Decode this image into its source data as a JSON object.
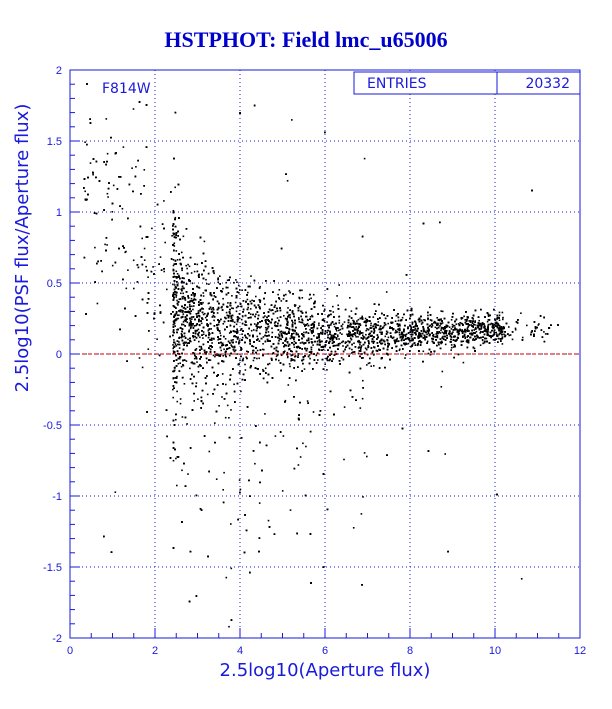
{
  "colors": {
    "axis": "#1a1adb",
    "title": "#0000cc",
    "points": "#000000",
    "zero_line": "#cc0000",
    "grid": "#1a1adb"
  },
  "chart_data": {
    "type": "scatter",
    "title": "HSTPHOT: Field lmc_u65006",
    "xlabel": "2.5log10(Aperture flux)",
    "ylabel": "2.5log10(PSF flux/Aperture flux)",
    "xlim": [
      0,
      12
    ],
    "ylim": [
      -2,
      2
    ],
    "x_ticks": [
      "0",
      "2",
      "4",
      "6",
      "8",
      "10",
      "12"
    ],
    "y_ticks": [
      "-2",
      "-1.5",
      "-1",
      "-0.5",
      "0",
      "0.5",
      "1",
      "1.5",
      "2"
    ],
    "grid": true,
    "reference_line": {
      "y": 0,
      "style": "dashed"
    },
    "filter_label": "F814W",
    "stats_box": {
      "label": "ENTRIES",
      "value": "20332",
      "placement": "top-right"
    },
    "distribution": {
      "approx_ridge": [
        {
          "x": 2.5,
          "y": 0.35
        },
        {
          "x": 3.0,
          "y": 0.25
        },
        {
          "x": 4.0,
          "y": 0.18
        },
        {
          "x": 5.0,
          "y": 0.15
        },
        {
          "x": 6.0,
          "y": 0.14
        },
        {
          "x": 7.0,
          "y": 0.14
        },
        {
          "x": 8.0,
          "y": 0.15
        },
        {
          "x": 9.0,
          "y": 0.16
        },
        {
          "x": 10.0,
          "y": 0.18
        }
      ]
    }
  }
}
